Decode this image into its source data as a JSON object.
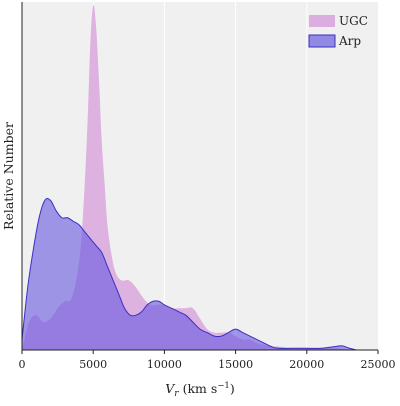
{
  "chart_data": {
    "type": "area",
    "xlabel": "V_r (km s^-1)",
    "xlabel_main": "V",
    "xlabel_sub": "r",
    "xlabel_unit_open": "(km s",
    "xlabel_unit_sup": "−1",
    "xlabel_unit_close": ")",
    "ylabel": "Relative Number",
    "xlim": [
      0,
      25000
    ],
    "ylim": [
      0,
      1.0
    ],
    "x_ticks": [
      0,
      5000,
      10000,
      15000,
      20000,
      25000
    ],
    "x_tick_labels": [
      "0",
      "5000",
      "10000",
      "15000",
      "20000",
      "25000"
    ],
    "grid": true,
    "legend_position": "top-right",
    "series": [
      {
        "name": "UGC",
        "color": "#d9a6dd",
        "x": [
          0,
          500,
          1000,
          1500,
          2000,
          2500,
          3000,
          3500,
          4000,
          4300,
          4600,
          4800,
          5000,
          5200,
          5400,
          5600,
          5800,
          6000,
          6300,
          6600,
          7000,
          7500,
          8000,
          8500,
          9000,
          9500,
          10000,
          10500,
          11000,
          11500,
          12000,
          12500,
          13000,
          13500,
          14000,
          14500,
          15000,
          15500,
          16000,
          16500,
          17000,
          17500,
          18000,
          19000,
          20000,
          21000,
          22000,
          23000
        ],
        "values": [
          0.0,
          0.08,
          0.1,
          0.08,
          0.09,
          0.12,
          0.14,
          0.15,
          0.25,
          0.4,
          0.65,
          0.88,
          0.99,
          0.93,
          0.78,
          0.6,
          0.48,
          0.36,
          0.27,
          0.22,
          0.2,
          0.2,
          0.18,
          0.15,
          0.13,
          0.13,
          0.13,
          0.12,
          0.12,
          0.12,
          0.12,
          0.09,
          0.06,
          0.05,
          0.05,
          0.05,
          0.04,
          0.03,
          0.03,
          0.02,
          0.015,
          0.01,
          0.01,
          0.005,
          0.005,
          0.005,
          0.005,
          0.0
        ]
      },
      {
        "name": "Arp",
        "color": "#6a5ce0",
        "x": [
          0,
          400,
          800,
          1200,
          1600,
          2000,
          2400,
          2800,
          3200,
          3600,
          4000,
          4400,
          4800,
          5200,
          5600,
          6000,
          6400,
          6800,
          7200,
          7600,
          8000,
          8400,
          8800,
          9200,
          9600,
          10000,
          10500,
          11000,
          11500,
          12000,
          12500,
          13000,
          13500,
          14000,
          14500,
          15000,
          15500,
          16000,
          16500,
          17000,
          17500,
          18000,
          19000,
          20000,
          21000,
          22000,
          22500,
          23000,
          23500
        ],
        "values": [
          0.03,
          0.18,
          0.29,
          0.38,
          0.43,
          0.43,
          0.4,
          0.38,
          0.38,
          0.37,
          0.36,
          0.34,
          0.32,
          0.3,
          0.28,
          0.24,
          0.2,
          0.16,
          0.12,
          0.1,
          0.1,
          0.11,
          0.13,
          0.14,
          0.14,
          0.13,
          0.12,
          0.11,
          0.1,
          0.08,
          0.06,
          0.05,
          0.04,
          0.04,
          0.05,
          0.06,
          0.05,
          0.04,
          0.03,
          0.02,
          0.01,
          0.005,
          0.005,
          0.005,
          0.005,
          0.01,
          0.012,
          0.005,
          0.0
        ]
      }
    ]
  }
}
